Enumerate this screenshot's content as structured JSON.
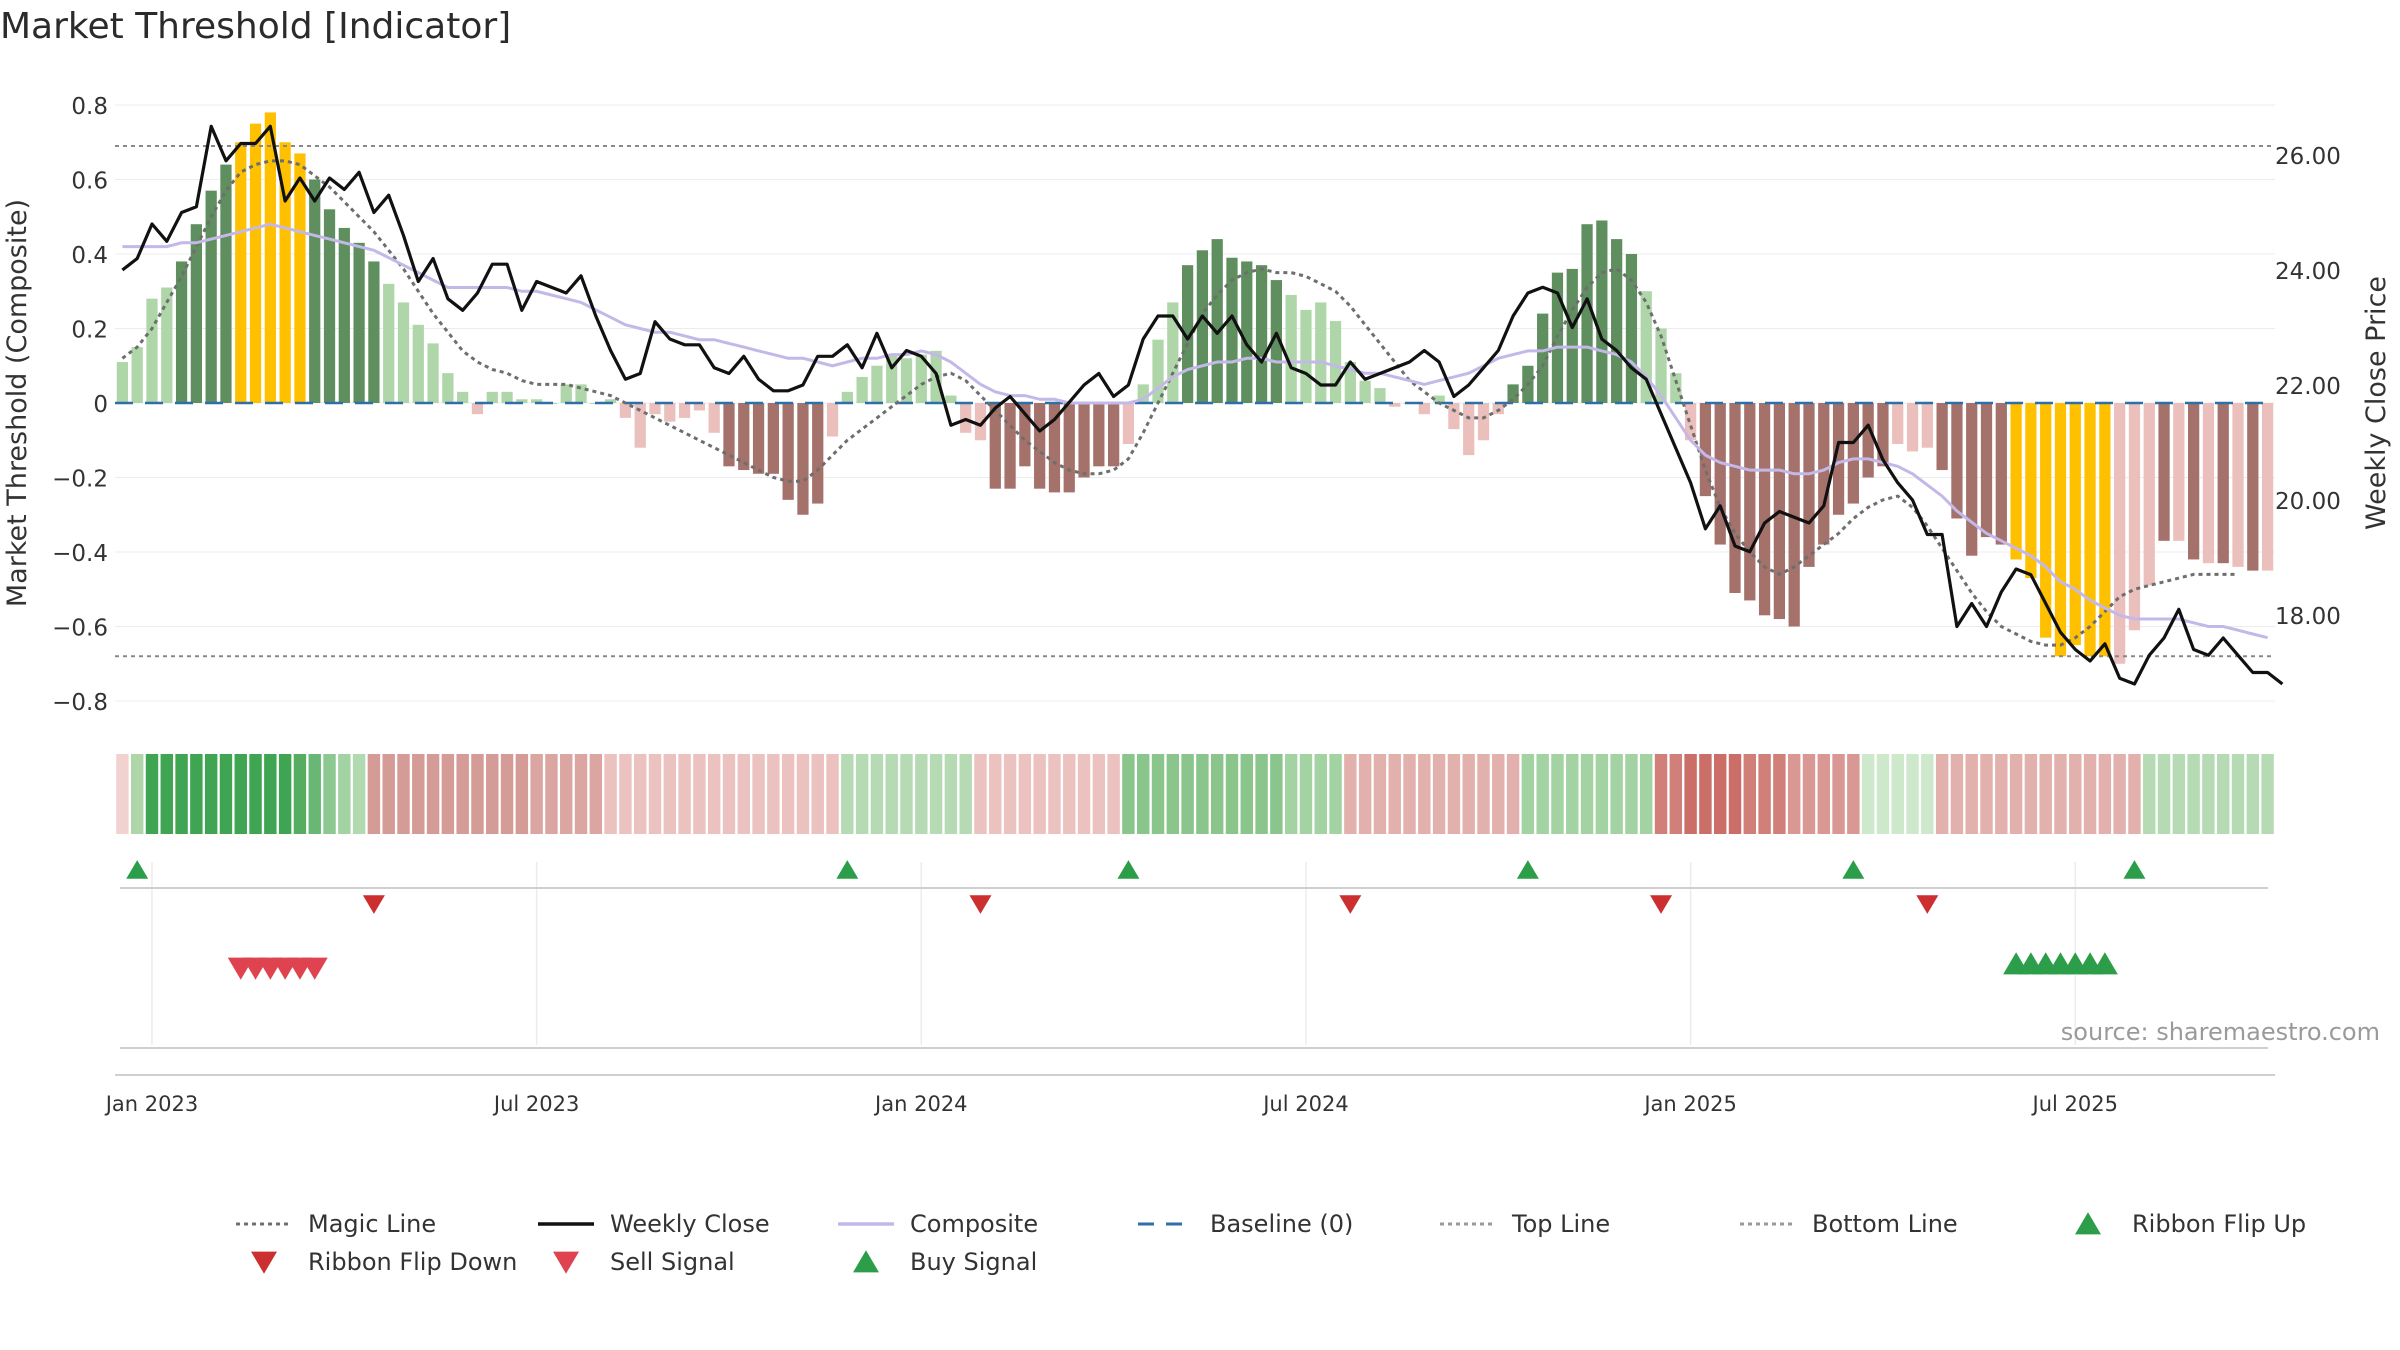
{
  "chart_data": {
    "type": "bar",
    "title": "Market Threshold [Indicator]",
    "ylabel": "Market Threshold (Composite)",
    "ylabel_right": "Weekly Close Price",
    "ylim": [
      -0.86,
      0.86
    ],
    "ylim_right": [
      16.5,
      27.0
    ],
    "y_ticks": [
      0.8,
      0.6,
      0.4,
      0.2,
      0,
      -0.2,
      -0.4,
      -0.6,
      -0.8
    ],
    "y_tick_labels": [
      "0.8",
      "0.6",
      "0.4",
      "0.2",
      "0",
      "−0.2",
      "−0.4",
      "−0.6",
      "−0.8"
    ],
    "y_right_ticks": [
      26,
      24,
      22,
      20,
      18
    ],
    "y_right_tick_labels": [
      "26.00",
      "24.00",
      "22.00",
      "20.00",
      "18.00"
    ],
    "x_ticks": [
      {
        "label": "Jan 2023",
        "week": 2
      },
      {
        "label": "Jul 2023",
        "week": 28
      },
      {
        "label": "Jan 2024",
        "week": 54
      },
      {
        "label": "Jul 2024",
        "week": 80
      },
      {
        "label": "Jan 2025",
        "week": 106
      },
      {
        "label": "Jul 2025",
        "week": 132
      }
    ],
    "top_line": 0.69,
    "bottom_line": -0.68,
    "baseline": 0,
    "source": "source: sharemaestro.com",
    "legend": [
      {
        "name": "Magic Line",
        "kind": "dotted",
        "color": "#707070"
      },
      {
        "name": "Weekly Close",
        "kind": "solid",
        "color": "#111111"
      },
      {
        "name": "Composite",
        "kind": "solid",
        "color": "#c4b8e8"
      },
      {
        "name": "Baseline (0)",
        "kind": "dashed",
        "color": "#2e6fa8"
      },
      {
        "name": "Top Line",
        "kind": "dotted",
        "color": "#9a9a9a"
      },
      {
        "name": "Bottom Line",
        "kind": "dotted",
        "color": "#9a9a9a"
      },
      {
        "name": "Ribbon Flip Up",
        "kind": "tri-up",
        "color": "#2c9e49"
      },
      {
        "name": "Ribbon Flip Down",
        "kind": "tri-down",
        "color": "#cc2f2f"
      },
      {
        "name": "Sell Signal",
        "kind": "tri-down",
        "color": "#e04350"
      },
      {
        "name": "Buy Signal",
        "kind": "tri-up",
        "color": "#2c9e49"
      }
    ],
    "colors": {
      "strong_green": "#5f8f5f",
      "light_green": "#afd6a8",
      "strong_red": "#a4716b",
      "light_red": "#ebbfbb",
      "gold": "#ffc000",
      "ribbon_light_red": "#f2d2d0",
      "ribbon_green": "#2c9e49"
    },
    "series": [
      {
        "name": "Composite",
        "values": [
          0.11,
          0.15,
          0.28,
          0.31,
          0.38,
          0.48,
          0.57,
          0.64,
          0.7,
          0.75,
          0.78,
          0.7,
          0.67,
          0.6,
          0.52,
          0.47,
          0.43,
          0.38,
          0.32,
          0.27,
          0.21,
          0.16,
          0.08,
          0.03,
          -0.03,
          0.03,
          0.03,
          0.01,
          0.01,
          0.0,
          0.05,
          0.05,
          0.0,
          0.01,
          -0.04,
          -0.12,
          -0.03,
          -0.05,
          -0.04,
          -0.02,
          -0.08,
          -0.17,
          -0.18,
          -0.19,
          -0.19,
          -0.26,
          -0.3,
          -0.27,
          -0.09,
          0.03,
          0.07,
          0.1,
          0.13,
          0.12,
          0.13,
          0.14,
          0.02,
          -0.08,
          -0.1,
          -0.23,
          -0.23,
          -0.17,
          -0.23,
          -0.24,
          -0.24,
          -0.2,
          -0.17,
          -0.17,
          -0.11,
          0.05,
          0.17,
          0.27,
          0.37,
          0.41,
          0.44,
          0.39,
          0.38,
          0.37,
          0.33,
          0.29,
          0.25,
          0.27,
          0.22,
          0.11,
          0.06,
          0.04,
          -0.01,
          0.0,
          -0.03,
          0.02,
          -0.07,
          -0.14,
          -0.1,
          -0.03,
          0.05,
          0.1,
          0.24,
          0.35,
          0.36,
          0.48,
          0.49,
          0.44,
          0.4,
          0.3,
          0.2,
          0.08,
          -0.1,
          -0.25,
          -0.38,
          -0.51,
          -0.53,
          -0.57,
          -0.58,
          -0.6,
          -0.44,
          -0.38,
          -0.3,
          -0.27,
          -0.2,
          -0.17,
          -0.11,
          -0.13,
          -0.12,
          -0.18,
          -0.31,
          -0.41,
          -0.36,
          -0.38,
          -0.42,
          -0.47,
          -0.63,
          -0.68,
          -0.65,
          -0.68,
          -0.68,
          -0.7,
          -0.61,
          -0.49,
          -0.37,
          -0.37,
          -0.42,
          -0.43,
          -0.43,
          -0.44,
          -0.45,
          -0.45
        ]
      },
      {
        "name": "Weekly Close",
        "values": [
          24.0,
          24.2,
          24.8,
          24.5,
          25.0,
          25.1,
          26.5,
          25.9,
          26.2,
          26.2,
          26.5,
          25.2,
          25.6,
          25.2,
          25.6,
          25.4,
          25.7,
          25.0,
          25.3,
          24.6,
          23.8,
          24.2,
          23.5,
          23.3,
          23.6,
          24.1,
          24.1,
          23.3,
          23.8,
          23.7,
          23.6,
          23.9,
          23.2,
          22.6,
          22.1,
          22.2,
          23.1,
          22.8,
          22.7,
          22.7,
          22.3,
          22.2,
          22.5,
          22.1,
          21.9,
          21.9,
          22.0,
          22.5,
          22.5,
          22.7,
          22.3,
          22.9,
          22.3,
          22.6,
          22.5,
          22.2,
          21.3,
          21.4,
          21.3,
          21.6,
          21.8,
          21.5,
          21.2,
          21.4,
          21.7,
          22.0,
          22.2,
          21.8,
          22.0,
          22.8,
          23.2,
          23.2,
          22.8,
          23.2,
          22.9,
          23.2,
          22.7,
          22.4,
          22.9,
          22.3,
          22.2,
          22.0,
          22.0,
          22.4,
          22.1,
          22.2,
          22.3,
          22.4,
          22.6,
          22.4,
          21.8,
          22.0,
          22.3,
          22.6,
          23.2,
          23.6,
          23.7,
          23.6,
          23.0,
          23.5,
          22.8,
          22.6,
          22.3,
          22.1,
          21.5,
          20.9,
          20.3,
          19.5,
          19.9,
          19.2,
          19.1,
          19.6,
          19.8,
          19.7,
          19.6,
          19.9,
          21.0,
          21.0,
          21.3,
          20.7,
          20.3,
          20.0,
          19.4,
          19.4,
          17.8,
          18.2,
          17.8,
          18.4,
          18.8,
          18.7,
          18.2,
          17.7,
          17.4,
          17.2,
          17.5,
          16.9,
          16.8,
          17.3,
          17.6,
          18.1,
          17.4,
          17.3,
          17.6,
          17.3,
          17.0,
          17.0,
          16.8
        ]
      },
      {
        "name": "Composite line",
        "values": [
          0.42,
          0.42,
          0.42,
          0.42,
          0.43,
          0.43,
          0.44,
          0.45,
          0.46,
          0.47,
          0.48,
          0.47,
          0.46,
          0.45,
          0.44,
          0.43,
          0.42,
          0.41,
          0.39,
          0.37,
          0.35,
          0.33,
          0.31,
          0.31,
          0.31,
          0.31,
          0.31,
          0.3,
          0.3,
          0.29,
          0.28,
          0.27,
          0.25,
          0.23,
          0.21,
          0.2,
          0.19,
          0.19,
          0.18,
          0.17,
          0.17,
          0.16,
          0.15,
          0.14,
          0.13,
          0.12,
          0.12,
          0.11,
          0.1,
          0.11,
          0.12,
          0.12,
          0.13,
          0.13,
          0.14,
          0.13,
          0.11,
          0.08,
          0.05,
          0.03,
          0.02,
          0.02,
          0.01,
          0.01,
          0.0,
          0.0,
          0.0,
          0.0,
          0.0,
          0.01,
          0.04,
          0.07,
          0.09,
          0.1,
          0.11,
          0.11,
          0.12,
          0.12,
          0.11,
          0.11,
          0.11,
          0.11,
          0.1,
          0.09,
          0.08,
          0.08,
          0.07,
          0.06,
          0.05,
          0.06,
          0.07,
          0.08,
          0.1,
          0.12,
          0.13,
          0.14,
          0.14,
          0.15,
          0.15,
          0.15,
          0.14,
          0.13,
          0.11,
          0.07,
          0.02,
          -0.04,
          -0.1,
          -0.14,
          -0.16,
          -0.17,
          -0.18,
          -0.18,
          -0.18,
          -0.19,
          -0.19,
          -0.18,
          -0.16,
          -0.15,
          -0.15,
          -0.16,
          -0.17,
          -0.19,
          -0.22,
          -0.25,
          -0.29,
          -0.32,
          -0.35,
          -0.37,
          -0.39,
          -0.41,
          -0.44,
          -0.48,
          -0.5,
          -0.53,
          -0.55,
          -0.57,
          -0.58,
          -0.58,
          -0.58,
          -0.58,
          -0.59,
          -0.6,
          -0.6,
          -0.61,
          -0.62,
          -0.63
        ]
      },
      {
        "name": "Magic Line",
        "values": [
          0.12,
          0.15,
          0.2,
          0.27,
          0.34,
          0.42,
          0.5,
          0.57,
          0.62,
          0.64,
          0.65,
          0.65,
          0.64,
          0.61,
          0.58,
          0.54,
          0.5,
          0.46,
          0.41,
          0.36,
          0.3,
          0.24,
          0.19,
          0.14,
          0.11,
          0.09,
          0.08,
          0.06,
          0.05,
          0.05,
          0.05,
          0.04,
          0.03,
          0.02,
          0.0,
          -0.02,
          -0.04,
          -0.06,
          -0.08,
          -0.1,
          -0.12,
          -0.14,
          -0.16,
          -0.18,
          -0.2,
          -0.21,
          -0.21,
          -0.18,
          -0.14,
          -0.1,
          -0.07,
          -0.04,
          -0.01,
          0.02,
          0.05,
          0.07,
          0.08,
          0.06,
          0.02,
          -0.02,
          -0.06,
          -0.1,
          -0.13,
          -0.16,
          -0.18,
          -0.19,
          -0.19,
          -0.18,
          -0.15,
          -0.08,
          0.0,
          0.08,
          0.16,
          0.24,
          0.29,
          0.33,
          0.35,
          0.36,
          0.35,
          0.35,
          0.34,
          0.32,
          0.3,
          0.26,
          0.21,
          0.16,
          0.11,
          0.06,
          0.03,
          0.0,
          -0.02,
          -0.04,
          -0.04,
          -0.02,
          0.01,
          0.05,
          0.1,
          0.18,
          0.25,
          0.31,
          0.35,
          0.36,
          0.33,
          0.27,
          0.18,
          0.06,
          -0.06,
          -0.18,
          -0.28,
          -0.35,
          -0.4,
          -0.44,
          -0.46,
          -0.44,
          -0.41,
          -0.38,
          -0.35,
          -0.31,
          -0.28,
          -0.26,
          -0.25,
          -0.28,
          -0.33,
          -0.39,
          -0.45,
          -0.51,
          -0.56,
          -0.6,
          -0.62,
          -0.64,
          -0.65,
          -0.65,
          -0.63,
          -0.6,
          -0.56,
          -0.52,
          -0.5,
          -0.49,
          -0.48,
          -0.47,
          -0.46,
          -0.46,
          -0.46,
          -0.46
        ]
      }
    ],
    "ribbon": [
      "#f2d2d0",
      "#afd6a8",
      "#3fa552",
      "#3fa552",
      "#3fa552",
      "#3fa552",
      "#3fa552",
      "#3fa552",
      "#3fa552",
      "#3fa552",
      "#3fa552",
      "#3fa552",
      "#56ad62",
      "#6ab775",
      "#8cc890",
      "#a3d3a2",
      "#b1dab1",
      "#d59b96",
      "#d59b96",
      "#d59b96",
      "#d59b96",
      "#d59b96",
      "#d59b96",
      "#d59b96",
      "#d59b96",
      "#d59b96",
      "#d59b96",
      "#d59b96",
      "#dba6a2",
      "#dba6a2",
      "#dba6a2",
      "#dba6a2",
      "#dba6a2",
      "#ebc2bf",
      "#ebc2bf",
      "#ebc2bf",
      "#ebc2bf",
      "#ebc2bf",
      "#ebc2bf",
      "#ebc2bf",
      "#ebc2bf",
      "#ebc2bf",
      "#ebc2bf",
      "#ebc2bf",
      "#ebc2bf",
      "#ebc2bf",
      "#ebc2bf",
      "#ebc2bf",
      "#ebc2bf",
      "#b6dbb4",
      "#b6dbb4",
      "#b6dbb4",
      "#b6dbb4",
      "#b6dbb4",
      "#b6dbb4",
      "#b6dbb4",
      "#b6dbb4",
      "#b6dbb4",
      "#ebc2bf",
      "#ebc2bf",
      "#ebc2bf",
      "#ebc2bf",
      "#ebc2bf",
      "#ebc2bf",
      "#ebc2bf",
      "#ebc2bf",
      "#ebc2bf",
      "#ebc2bf",
      "#8ac58c",
      "#8ac58c",
      "#8ac58c",
      "#8ac58c",
      "#8ac58c",
      "#8ac58c",
      "#8ac58c",
      "#8ac58c",
      "#8ac58c",
      "#8ac58c",
      "#8ac58c",
      "#a3d3a2",
      "#a3d3a2",
      "#a3d3a2",
      "#a3d3a2",
      "#e3b1ad",
      "#e3b1ad",
      "#e3b1ad",
      "#e3b1ad",
      "#e3b1ad",
      "#e3b1ad",
      "#e3b1ad",
      "#e3b1ad",
      "#e3b1ad",
      "#e3b1ad",
      "#e3b1ad",
      "#e3b1ad",
      "#a3d3a2",
      "#a3d3a2",
      "#a3d3a2",
      "#a3d3a2",
      "#a3d3a2",
      "#a3d3a2",
      "#a3d3a2",
      "#a3d3a2",
      "#a3d3a2",
      "#d17f79",
      "#d17f79",
      "#cb6e67",
      "#cb6e67",
      "#cb6e67",
      "#cb6e67",
      "#d17f79",
      "#d17f79",
      "#d17f79",
      "#d99894",
      "#d99894",
      "#d99894",
      "#d99894",
      "#d99894",
      "#cde8cb",
      "#cde8cb",
      "#cde8cb",
      "#cde8cb",
      "#cde8cb",
      "#e3b1ad",
      "#e3b1ad",
      "#e3b1ad",
      "#e3b1ad",
      "#e3b1ad",
      "#e3b1ad",
      "#e3b1ad",
      "#e3b1ad",
      "#e3b1ad",
      "#e3b1ad",
      "#e3b1ad",
      "#e3b1ad",
      "#e3b1ad",
      "#e3b1ad",
      "#b6dbb4",
      "#b6dbb4",
      "#b6dbb4",
      "#b6dbb4",
      "#b6dbb4",
      "#b6dbb4",
      "#b6dbb4",
      "#b6dbb4",
      "#b6dbb4"
    ],
    "ribbon_flip_up_weeks": [
      1,
      49,
      68,
      95,
      117,
      136
    ],
    "ribbon_flip_down_weeks": [
      17,
      58,
      83,
      104,
      122
    ],
    "sell_signal_weeks": [
      8,
      9,
      10,
      11,
      12,
      13
    ],
    "buy_signal_weeks": [
      128,
      129,
      130,
      131,
      132,
      133,
      134
    ]
  }
}
